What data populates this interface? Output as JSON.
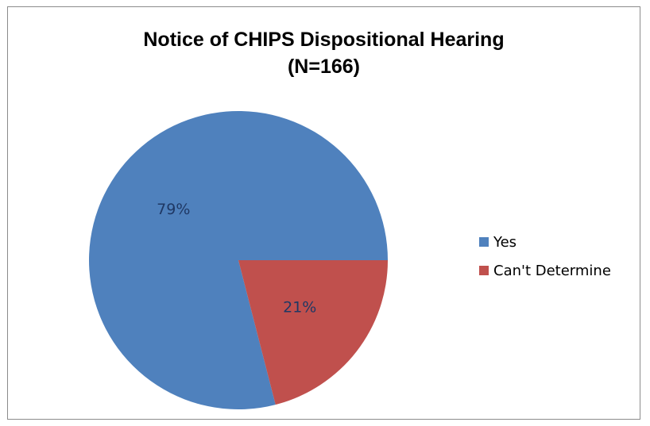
{
  "chart_data": {
    "type": "pie",
    "title": "Notice of CHIPS Dispositional Hearing",
    "subtitle": "(N=166)",
    "categories": [
      "Yes",
      "Can't Determine"
    ],
    "values": [
      79,
      21
    ],
    "data_labels": [
      "79%",
      "21%"
    ],
    "colors": [
      "#4f81bd",
      "#c0504d"
    ],
    "label_color": "#1f3864",
    "legend_position": "right",
    "start_angle_deg": 90,
    "direction": "counterclockwise"
  }
}
